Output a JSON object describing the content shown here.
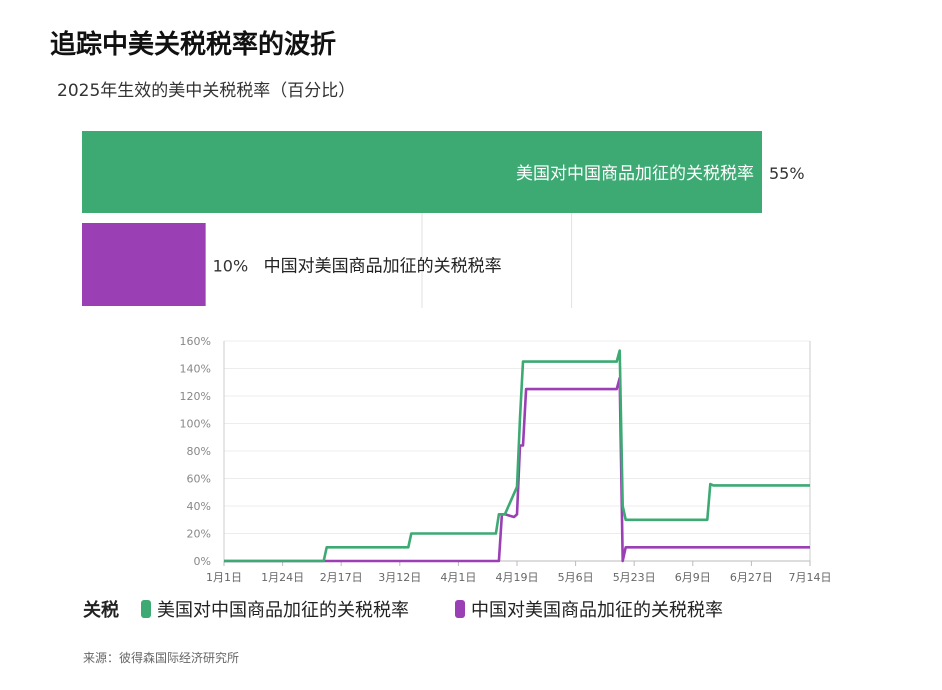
{
  "title": "追踪中美关税税率的波折",
  "subtitle": "2025年生效的美中关税税率（百分比）",
  "colors": {
    "us": "#3DAA74",
    "cn": "#9B3FB5"
  },
  "chart_data": [
    {
      "type": "bar",
      "orientation": "horizontal",
      "categories": [
        "美国对中国商品加征的关税税率",
        "中国对美国商品加征的关税税率"
      ],
      "values": [
        55,
        10
      ],
      "value_labels": [
        "55%",
        "10%"
      ],
      "xlim": [
        0,
        55
      ],
      "grid": true
    },
    {
      "type": "line",
      "x_ticks": [
        "1月1日",
        "1月24日",
        "2月17日",
        "3月12日",
        "4月1日",
        "4月19日",
        "5月6日",
        "5月23日",
        "6月9日",
        "6月27日",
        "7月14日"
      ],
      "y_ticks": [
        "0%",
        "20%",
        "40%",
        "60%",
        "80%",
        "100%",
        "120%",
        "140%",
        "160%"
      ],
      "ylim": [
        0,
        160
      ],
      "legend_title": "关税",
      "series": [
        {
          "name": "美国对中国商品加征的关税税率",
          "x": [
            "2025-01-01",
            "2025-02-03",
            "2025-02-04",
            "2025-03-03",
            "2025-03-04",
            "2025-04-01",
            "2025-04-02",
            "2025-04-04",
            "2025-04-08",
            "2025-04-09",
            "2025-04-10",
            "2025-05-11",
            "2025-05-12",
            "2025-05-13",
            "2025-05-14",
            "2025-06-10",
            "2025-06-11",
            "2025-06-12",
            "2025-07-14"
          ],
          "values": [
            0,
            0,
            10,
            10,
            20,
            20,
            34,
            34,
            54,
            104,
            145,
            145,
            153,
            40,
            30,
            30,
            56,
            55,
            55
          ]
        },
        {
          "name": "中国对美国商品加征的关税税率",
          "x": [
            "2025-01-01",
            "2025-04-02",
            "2025-04-03",
            "2025-04-04",
            "2025-04-07",
            "2025-04-08",
            "2025-04-09",
            "2025-04-10",
            "2025-04-11",
            "2025-04-12",
            "2025-05-11",
            "2025-05-12",
            "2025-05-13",
            "2025-05-14",
            "2025-07-14"
          ],
          "values": [
            0,
            0,
            34,
            34,
            32,
            34,
            84,
            84,
            125,
            125,
            125,
            133,
            0,
            10,
            10
          ]
        }
      ]
    }
  ],
  "source": "来源：彼得森国际经济研究所"
}
